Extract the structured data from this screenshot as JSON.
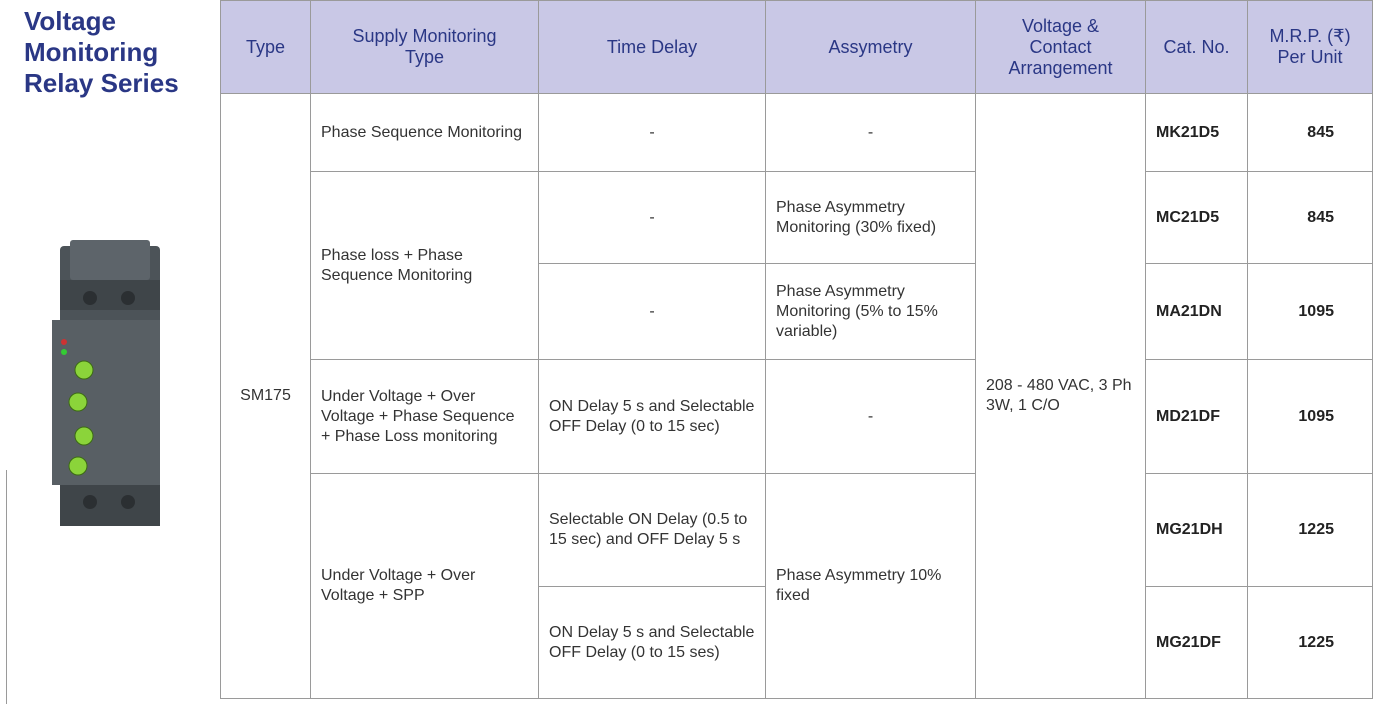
{
  "title": "Voltage Monitoring Relay Series",
  "table": {
    "header": [
      "Type",
      "Supply Monitoring Type",
      "Time Delay",
      "Assymetry",
      "Voltage & Contact Arrangement",
      "Cat. No.",
      "M.R.P. (₹) Per Unit"
    ],
    "type": "SM175",
    "voltage": "208 - 480 VAC, 3 Ph 3W, 1 C/O",
    "rows": [
      {
        "supply": "Phase Sequence Monitoring",
        "delay": "-",
        "asymmetry": "-",
        "cat": "MK21D5",
        "mrp": "845"
      },
      {
        "supply": "Phase loss + Phase Sequence Monitoring",
        "delay": "-",
        "asymmetry": "Phase Asymmetry Monitoring (30% fixed)",
        "cat": "MC21D5",
        "mrp": "845"
      },
      {
        "delay": "-",
        "asymmetry": "Phase Asymmetry Monitoring (5% to 15% variable)",
        "cat": "MA21DN",
        "mrp": "1095"
      },
      {
        "supply": "Under Voltage + Over Voltage + Phase Sequence + Phase Loss monitoring",
        "delay": "ON Delay 5 s and Selectable OFF Delay (0 to 15 sec)",
        "asymmetry": "-",
        "cat": "MD21DF",
        "mrp": "1095"
      },
      {
        "supply": "Under Voltage + Over Voltage + SPP",
        "delay": "Selectable ON Delay (0.5 to 15 sec) and OFF Delay 5 s",
        "asymmetry": "Phase Asymmetry 10% fixed",
        "cat": "MG21DH",
        "mrp": "1225"
      },
      {
        "delay": "ON Delay 5 s and Selectable OFF Delay (0 to 15 ses)",
        "cat": "MG21DF",
        "mrp": "1225"
      }
    ]
  }
}
